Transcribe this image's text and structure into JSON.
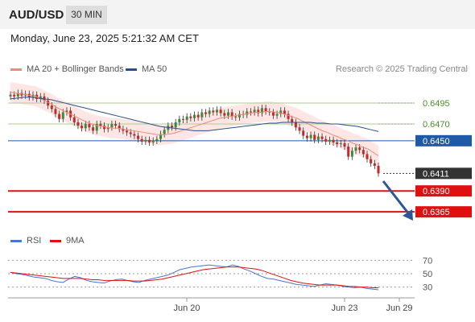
{
  "header": {
    "symbol": "AUD/USD",
    "interval": "30 MIN"
  },
  "timestamp": "Monday, June 23, 2025 5:21:32 AM CET",
  "legend": {
    "ma20_label": "MA 20 + Bollinger Bands",
    "ma20_color": "#f08a7a",
    "ma50_label": "MA 50",
    "ma50_color": "#2b4f8c",
    "copyright": "Research © 2025 Trading Central"
  },
  "rsi_legend": {
    "rsi_label": "RSI",
    "rsi_color": "#4a73d6",
    "ma9_label": "9MA",
    "ma9_color": "#e01010"
  },
  "chart_data": [
    {
      "type": "candlestick",
      "title": "",
      "price_range": [
        0.6344,
        0.6522
      ],
      "x_ticks": [
        "Jun 20",
        "Jun 23",
        "Jun 29"
      ],
      "levels": [
        {
          "value": "0.6495",
          "kind": "resistance",
          "color": "#a9d18e"
        },
        {
          "value": "0.6470",
          "kind": "resistance",
          "color": "#a9d18e"
        },
        {
          "value": "0.6450",
          "kind": "pivot",
          "color": "#1f5aa6"
        },
        {
          "value": "0.6411",
          "kind": "last",
          "color": "#333333"
        },
        {
          "value": "0.6390",
          "kind": "support",
          "color": "#e01010"
        },
        {
          "value": "0.6365",
          "kind": "support",
          "color": "#e01010"
        }
      ],
      "close_series": [
        0.6505,
        0.6503,
        0.6507,
        0.6504,
        0.6506,
        0.6502,
        0.6505,
        0.65,
        0.6503,
        0.6498,
        0.6492,
        0.6488,
        0.6482,
        0.6476,
        0.6484,
        0.6486,
        0.6478,
        0.6472,
        0.6468,
        0.6465,
        0.647,
        0.6466,
        0.6462,
        0.647,
        0.6468,
        0.6464,
        0.6466,
        0.647,
        0.6468,
        0.6464,
        0.6462,
        0.646,
        0.6458,
        0.6456,
        0.6452,
        0.6449,
        0.6451,
        0.6448,
        0.645,
        0.6452,
        0.6458,
        0.6463,
        0.6468,
        0.6466,
        0.6472,
        0.6476,
        0.6475,
        0.6479,
        0.6477,
        0.6481,
        0.6478,
        0.6484,
        0.6482,
        0.6486,
        0.6484,
        0.6487,
        0.6483,
        0.648,
        0.6484,
        0.6479,
        0.6478,
        0.6482,
        0.6481,
        0.6485,
        0.6484,
        0.6487,
        0.6483,
        0.6489,
        0.6485,
        0.6484,
        0.648,
        0.6482,
        0.6486,
        0.6482,
        0.6476,
        0.6472,
        0.6466,
        0.6462,
        0.6456,
        0.6453,
        0.6457,
        0.6451,
        0.6455,
        0.6452,
        0.6449,
        0.6451,
        0.6448,
        0.6446,
        0.6447,
        0.6443,
        0.6431,
        0.6438,
        0.6442,
        0.6439,
        0.6434,
        0.6428,
        0.6423,
        0.642,
        0.6411
      ],
      "ma20_series": [
        0.6508,
        0.6507,
        0.6506,
        0.6505,
        0.6504,
        0.6503,
        0.65,
        0.6497,
        0.6494,
        0.649,
        0.6487,
        0.6484,
        0.6481,
        0.6478,
        0.6475,
        0.6472,
        0.647,
        0.6468,
        0.6467,
        0.6466,
        0.6465,
        0.6465,
        0.6464,
        0.6463,
        0.6462,
        0.6461,
        0.646,
        0.6459,
        0.6458,
        0.6457,
        0.6457,
        0.6458,
        0.6459,
        0.6461,
        0.6463,
        0.6465,
        0.6467,
        0.6469,
        0.6471,
        0.6473,
        0.6475,
        0.6477,
        0.6478,
        0.6479,
        0.648,
        0.6481,
        0.6482,
        0.6483,
        0.6484,
        0.6484,
        0.6485,
        0.6485,
        0.6484,
        0.6483,
        0.6481,
        0.6479,
        0.6477,
        0.6474,
        0.6471,
        0.6468,
        0.6465,
        0.6462,
        0.646,
        0.6457,
        0.6455,
        0.6452,
        0.645,
        0.6447,
        0.6445,
        0.6442,
        0.644,
        0.6436,
        0.6432
      ],
      "ma50_series": [
        0.65,
        0.6501,
        0.6502,
        0.6502,
        0.6501,
        0.65,
        0.6499,
        0.6497,
        0.6495,
        0.6493,
        0.6491,
        0.6489,
        0.6487,
        0.6485,
        0.6483,
        0.6481,
        0.6479,
        0.6477,
        0.6475,
        0.6473,
        0.6471,
        0.6469,
        0.6467,
        0.6466,
        0.6465,
        0.6464,
        0.6463,
        0.6462,
        0.6462,
        0.6462,
        0.6463,
        0.6464,
        0.6465,
        0.6466,
        0.6467,
        0.6468,
        0.6469,
        0.647,
        0.6471,
        0.6471,
        0.6472,
        0.6472,
        0.6472,
        0.6472,
        0.6472,
        0.6471,
        0.6471,
        0.647,
        0.647,
        0.6469,
        0.6468,
        0.6467,
        0.6465,
        0.6463,
        0.6461
      ]
    },
    {
      "type": "line",
      "title": "",
      "y_ticks": [
        "70",
        "50",
        "30"
      ],
      "ylim": [
        20,
        80
      ],
      "series": [
        {
          "name": "RSI",
          "values": [
            52,
            50,
            49,
            47,
            45,
            44,
            43,
            40,
            38,
            37,
            42,
            46,
            44,
            40,
            38,
            37,
            36,
            39,
            41,
            42,
            40,
            38,
            37,
            40,
            42,
            44,
            46,
            48,
            52,
            56,
            58,
            60,
            61,
            62,
            63,
            62,
            61,
            60,
            63,
            61,
            57,
            54,
            50,
            46,
            43,
            42,
            40,
            38,
            36,
            34,
            33,
            32,
            31,
            33,
            35,
            34,
            33,
            31,
            30,
            29,
            30,
            28,
            27,
            26
          ]
        },
        {
          "name": "9MA",
          "values": [
            52,
            51,
            50,
            49,
            48,
            47,
            46,
            45,
            44,
            43,
            43,
            43,
            43,
            42,
            41,
            41,
            40,
            40,
            40,
            40,
            40,
            39,
            39,
            39,
            40,
            41,
            42,
            44,
            46,
            48,
            50,
            52,
            54,
            56,
            57,
            58,
            59,
            60,
            60,
            60,
            59,
            58,
            57,
            55,
            52,
            49,
            46,
            43,
            40,
            38,
            36,
            35,
            34,
            33,
            33,
            33,
            33,
            32,
            31,
            31,
            30,
            30,
            29,
            29
          ]
        }
      ]
    }
  ]
}
